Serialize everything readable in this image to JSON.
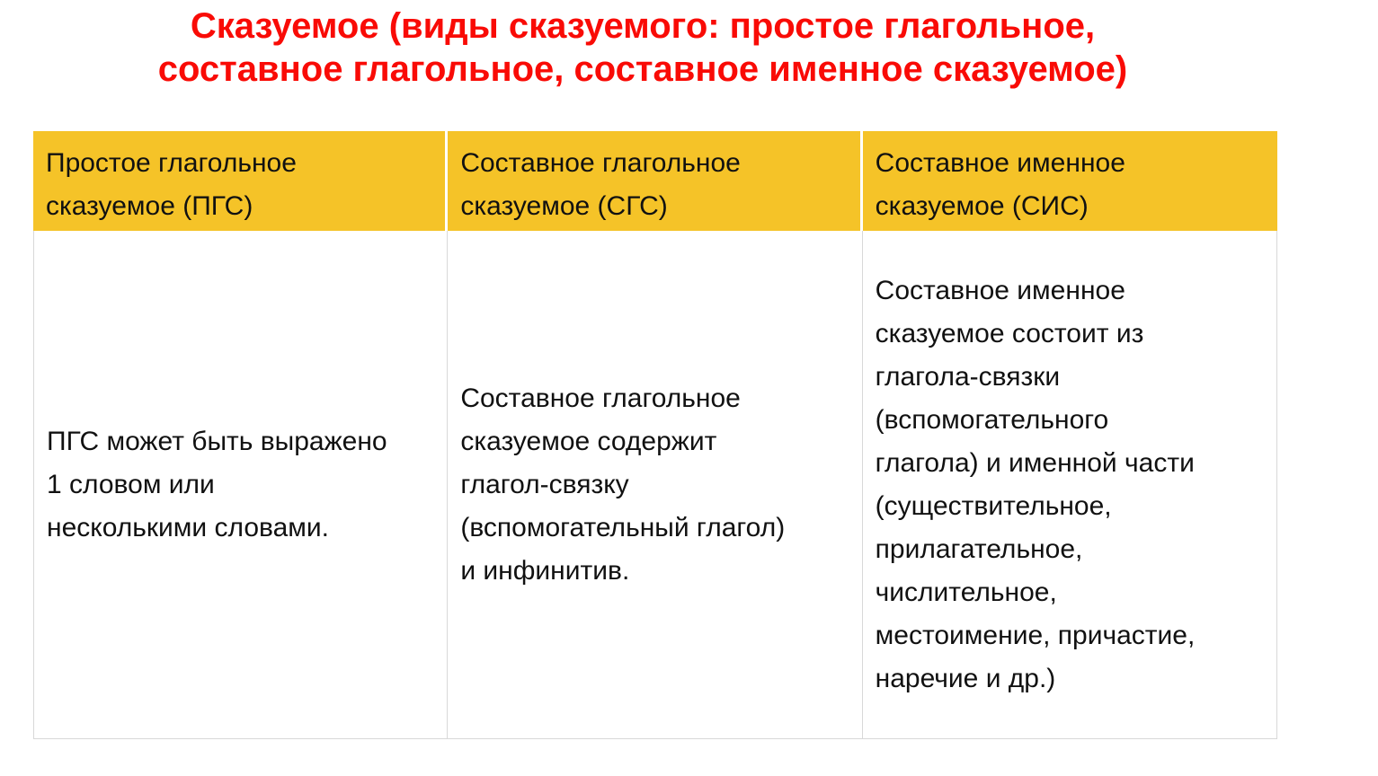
{
  "colors": {
    "title_red": "#f90b06",
    "header_bg": "#f5c328",
    "border_gray": "#d8d8d8",
    "text_black": "#111111",
    "page_bg": "#ffffff"
  },
  "title": {
    "lines": [
      "Сказуемое (виды сказуемого: простое глагольное,",
      "составное глагольное, составное именное сказуемое)"
    ]
  },
  "table": {
    "columns": [
      {
        "abbreviation": "ПГС",
        "header_lines": [
          "Простое глагольное",
          "сказуемое (ПГС)"
        ],
        "body_lines": [
          "ПГС может быть выражено",
          "1 словом или",
          "несколькими словами."
        ]
      },
      {
        "abbreviation": "СГС",
        "header_lines": [
          "Составное глагольное",
          "сказуемое (СГС)"
        ],
        "body_lines": [
          "Составное глагольное",
          "сказуемое содержит",
          "глагол-связку",
          "(вспомогательный глагол)",
          "и инфинитив."
        ]
      },
      {
        "abbreviation": "СИС",
        "header_lines": [
          "Составное именное",
          "сказуемое (СИС)"
        ],
        "body_lines": [
          "Составное именное",
          "сказуемое состоит из",
          "глагола-связки",
          "(вспомогательного",
          "глагола) и именной части",
          "(существительное,",
          "прилагательное,",
          "числительное,",
          "местоимение, причастие,",
          "наречие и др.)"
        ]
      }
    ]
  }
}
